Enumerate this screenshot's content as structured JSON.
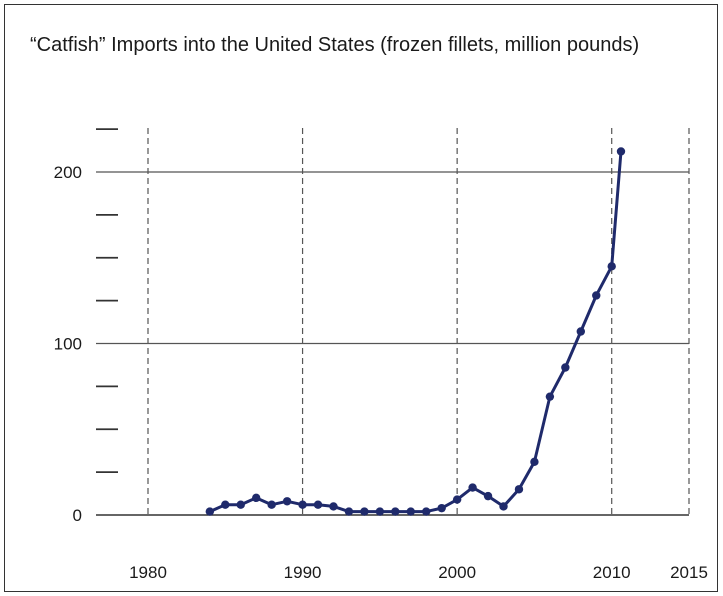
{
  "chart_data": {
    "type": "line",
    "title": "“Catfish” Imports into the United States  (frozen fillets, million pounds)",
    "xlabel": "",
    "ylabel": "",
    "xlim": [
      1980,
      2015
    ],
    "ylim": [
      0,
      220
    ],
    "x_ticks": [
      1980,
      1990,
      2000,
      2010,
      2015
    ],
    "y_ticks": [
      0,
      100,
      200
    ],
    "y_minor_ticks": [
      25,
      50,
      75,
      125,
      150,
      175,
      225
    ],
    "grid": "horizontal solid at 100 and 200; vertical dashed at 1980, 1990, 2000, 2010, 2015",
    "legend": "none",
    "colors": {
      "line": "#1f2a6b",
      "grid": "#555555",
      "axis": "#333333"
    },
    "series": [
      {
        "x": [
          1984,
          1985,
          1986,
          1987,
          1988,
          1989,
          1990,
          1991,
          1992,
          1993,
          1994,
          1995,
          1996,
          1997,
          1998,
          1999,
          2000,
          2001,
          2002,
          2003,
          2004,
          2005,
          2006,
          2007,
          2008,
          2009,
          2010,
          2010.6
        ],
        "values": [
          2,
          6,
          6,
          10,
          6,
          8,
          6,
          6,
          5,
          2,
          2,
          2,
          2,
          2,
          2,
          4,
          9,
          16,
          11,
          5,
          15,
          31,
          69,
          86,
          107,
          128,
          145,
          212
        ]
      }
    ]
  }
}
